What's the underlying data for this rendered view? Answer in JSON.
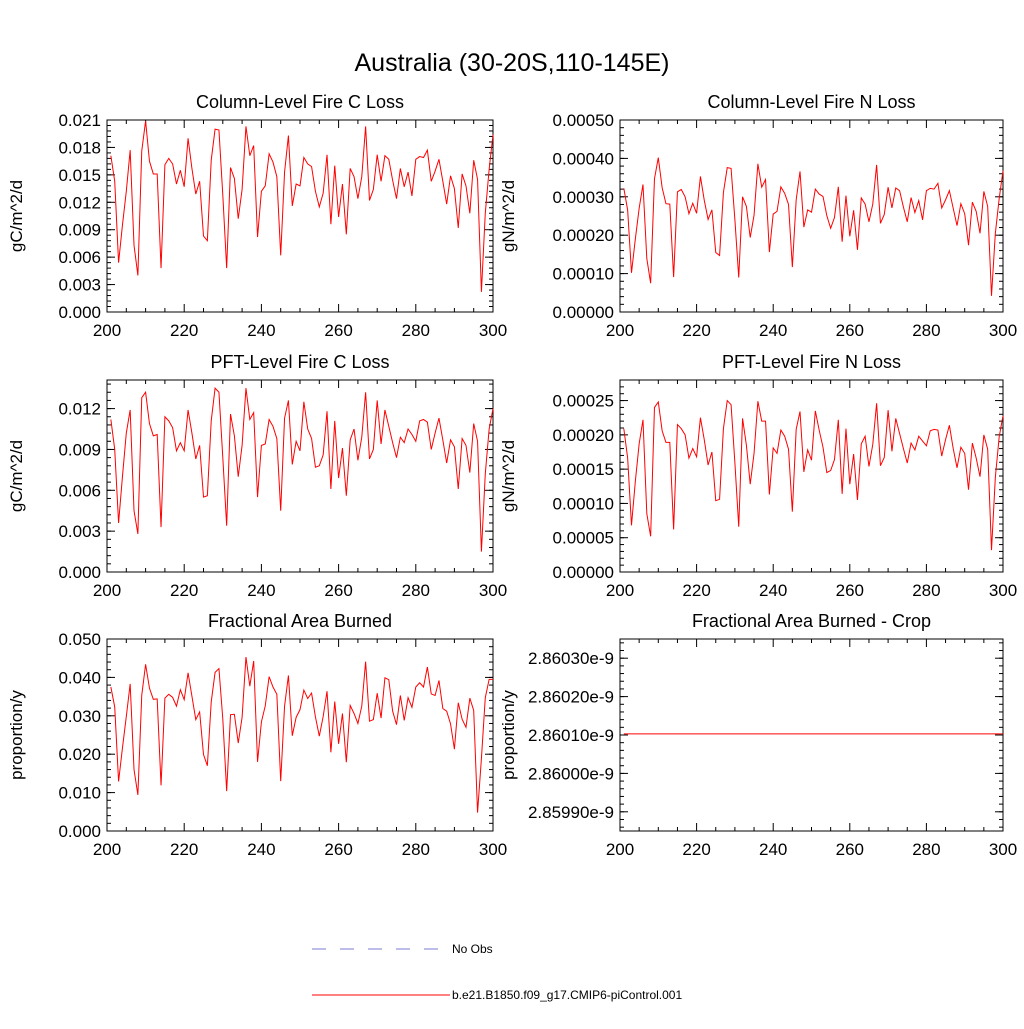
{
  "title": "Australia (30-20S,110-145E)",
  "colors": {
    "series": "#ff0000",
    "obs": "#7b7bd6"
  },
  "legend": [
    {
      "label": "No Obs",
      "style": "dashed",
      "color": "#7b7bd6"
    },
    {
      "label": "b.e21.B1850.f09_g17.CMIP6-piControl.001",
      "style": "solid",
      "color": "#ff0000"
    }
  ],
  "chart_data": [
    {
      "type": "line",
      "title": "Column-Level Fire C Loss",
      "ylabel": "gC/m^2/d",
      "xlim": [
        200,
        300
      ],
      "ylim": [
        0.0,
        0.021
      ],
      "xticks": [
        200,
        220,
        240,
        260,
        280,
        300
      ],
      "xtick_labels": [
        "200",
        "220",
        "240",
        "260",
        "280",
        "300"
      ],
      "yticks": [
        0.0,
        0.003,
        0.006,
        0.009,
        0.012,
        0.015,
        0.018,
        0.021
      ],
      "ytick_labels": [
        "0.000",
        "0.003",
        "0.006",
        "0.009",
        "0.012",
        "0.015",
        "0.018",
        "0.021"
      ],
      "x_start": 201,
      "values": [
        0.0171,
        0.0143,
        0.0054,
        0.0095,
        0.0132,
        0.0177,
        0.0073,
        0.004,
        0.0176,
        0.0209,
        0.0165,
        0.0151,
        0.0151,
        0.0048,
        0.0161,
        0.0168,
        0.0162,
        0.014,
        0.0155,
        0.0137,
        0.019,
        0.0157,
        0.0129,
        0.0143,
        0.0083,
        0.0078,
        0.0166,
        0.02,
        0.0199,
        0.0128,
        0.0048,
        0.0158,
        0.0146,
        0.0102,
        0.0134,
        0.0203,
        0.0171,
        0.0182,
        0.0082,
        0.0132,
        0.0138,
        0.0173,
        0.0164,
        0.0148,
        0.0062,
        0.0153,
        0.0193,
        0.0116,
        0.014,
        0.0138,
        0.0169,
        0.0162,
        0.0159,
        0.0132,
        0.0115,
        0.013,
        0.0172,
        0.0096,
        0.016,
        0.0104,
        0.014,
        0.0085,
        0.0157,
        0.0148,
        0.0124,
        0.0148,
        0.0203,
        0.0122,
        0.0134,
        0.0172,
        0.0143,
        0.0171,
        0.0167,
        0.0144,
        0.0124,
        0.0157,
        0.0137,
        0.0153,
        0.0127,
        0.0167,
        0.017,
        0.0169,
        0.0177,
        0.0143,
        0.0154,
        0.0167,
        0.0143,
        0.0118,
        0.0149,
        0.0135,
        0.0092,
        0.0151,
        0.0138,
        0.0108,
        0.0166,
        0.0145,
        0.0022,
        0.0108,
        0.0156,
        0.0194
      ]
    },
    {
      "type": "line",
      "title": "Column-Level Fire N Loss",
      "ylabel": "gN/m^2/d",
      "xlim": [
        200,
        300
      ],
      "ylim": [
        0.0,
        0.0005
      ],
      "xticks": [
        200,
        220,
        240,
        260,
        280,
        300
      ],
      "xtick_labels": [
        "200",
        "220",
        "240",
        "260",
        "280",
        "300"
      ],
      "yticks": [
        0.0,
        0.0001,
        0.0002,
        0.0003,
        0.0004,
        0.0005
      ],
      "ytick_labels": [
        "0.00000",
        "0.00010",
        "0.00020",
        "0.00030",
        "0.00040",
        "0.00050"
      ],
      "x_start": 201,
      "values": [
        0.000322,
        0.000265,
        0.000102,
        0.00019,
        0.00027,
        0.000332,
        0.000139,
        7.5e-05,
        0.000347,
        0.000402,
        0.000324,
        0.000282,
        0.000281,
        9.1e-05,
        0.000313,
        0.000319,
        0.0003,
        0.000256,
        0.000283,
        0.000257,
        0.000353,
        0.000291,
        0.000241,
        0.000266,
        0.000155,
        0.000147,
        0.000311,
        0.000376,
        0.000374,
        0.00024,
        9e-05,
        0.0003,
        0.000275,
        0.000194,
        0.000252,
        0.000386,
        0.000325,
        0.000345,
        0.000156,
        0.000255,
        0.000262,
        0.000326,
        0.000309,
        0.00028,
        0.000117,
        0.000292,
        0.000366,
        0.000221,
        0.000266,
        0.00026,
        0.00032,
        0.000307,
        0.000301,
        0.000251,
        0.000218,
        0.000246,
        0.000326,
        0.000183,
        0.000303,
        0.000197,
        0.000265,
        0.000162,
        0.000297,
        0.000281,
        0.000235,
        0.000281,
        0.000383,
        0.000231,
        0.000254,
        0.000325,
        0.000271,
        0.000323,
        0.000316,
        0.000273,
        0.000235,
        0.000298,
        0.000259,
        0.00029,
        0.00024,
        0.000316,
        0.000322,
        0.00032,
        0.000335,
        0.000271,
        0.000292,
        0.000316,
        0.00027,
        0.000225,
        0.000282,
        0.000256,
        0.000174,
        0.000286,
        0.000262,
        0.000205,
        0.000314,
        0.000275,
        4.2e-05,
        0.000205,
        0.000295,
        0.000368
      ]
    },
    {
      "type": "line",
      "title": "PFT-Level Fire C Loss",
      "ylabel": "gC/m^2/d",
      "xlim": [
        200,
        300
      ],
      "ylim": [
        0.0,
        0.0141
      ],
      "xticks": [
        200,
        220,
        240,
        260,
        280,
        300
      ],
      "xtick_labels": [
        "200",
        "220",
        "240",
        "260",
        "280",
        "300"
      ],
      "yticks": [
        0.0,
        0.003,
        0.006,
        0.009,
        0.012
      ],
      "ytick_labels": [
        "0.000",
        "0.003",
        "0.006",
        "0.009",
        "0.012"
      ],
      "x_start": 201,
      "values": [
        0.0112,
        0.009,
        0.0036,
        0.007,
        0.0102,
        0.0119,
        0.0045,
        0.0028,
        0.0128,
        0.0132,
        0.0109,
        0.01,
        0.0101,
        0.0033,
        0.0114,
        0.0111,
        0.0106,
        0.0089,
        0.0095,
        0.0089,
        0.0119,
        0.0102,
        0.0083,
        0.0093,
        0.0055,
        0.0056,
        0.0111,
        0.0135,
        0.0132,
        0.0084,
        0.0034,
        0.0116,
        0.01,
        0.007,
        0.0093,
        0.0135,
        0.0112,
        0.0117,
        0.0055,
        0.0093,
        0.0094,
        0.0112,
        0.0107,
        0.0098,
        0.0045,
        0.0113,
        0.0126,
        0.0079,
        0.0096,
        0.0089,
        0.0125,
        0.0105,
        0.0098,
        0.0077,
        0.0078,
        0.0086,
        0.0118,
        0.0061,
        0.0111,
        0.0069,
        0.0091,
        0.0056,
        0.0097,
        0.0105,
        0.0082,
        0.0099,
        0.0132,
        0.0083,
        0.009,
        0.0126,
        0.0094,
        0.0119,
        0.0107,
        0.0095,
        0.0084,
        0.0099,
        0.0095,
        0.0105,
        0.0101,
        0.0096,
        0.0111,
        0.0112,
        0.011,
        0.009,
        0.0102,
        0.0113,
        0.0097,
        0.008,
        0.0097,
        0.0092,
        0.0061,
        0.0098,
        0.0093,
        0.0073,
        0.0109,
        0.0096,
        0.0015,
        0.0072,
        0.0105,
        0.012
      ]
    },
    {
      "type": "line",
      "title": "PFT-Level Fire N Loss",
      "ylabel": "gN/m^2/d",
      "xlim": [
        200,
        300
      ],
      "ylim": [
        0.0,
        0.00028
      ],
      "xticks": [
        200,
        220,
        240,
        260,
        280,
        300
      ],
      "xtick_labels": [
        "200",
        "220",
        "240",
        "260",
        "280",
        "300"
      ],
      "yticks": [
        0.0,
        5e-05,
        0.0001,
        0.00015,
        0.0002,
        0.00025
      ],
      "ytick_labels": [
        "0.00000",
        "0.00005",
        "0.00010",
        "0.00015",
        "0.00020",
        "0.00025"
      ],
      "x_start": 201,
      "values": [
        0.000209,
        0.000166,
        6.8e-05,
        0.000132,
        0.000187,
        0.000222,
        8.5e-05,
        5.2e-05,
        0.00024,
        0.000248,
        0.000206,
        0.000189,
        0.000189,
        6.2e-05,
        0.000215,
        0.000209,
        0.0002,
        0.000166,
        0.00018,
        0.000168,
        0.000225,
        0.000193,
        0.000156,
        0.000175,
        0.000104,
        0.000106,
        0.000209,
        0.00025,
        0.000244,
        0.000159,
        6.6e-05,
        0.000224,
        0.000185,
        0.000128,
        0.000173,
        0.000249,
        0.00022,
        0.00022,
        0.000113,
        0.000181,
        0.000173,
        0.000207,
        0.000198,
        0.000179,
        8.8e-05,
        0.000208,
        0.000234,
        0.000146,
        0.000178,
        0.000163,
        0.000235,
        0.000207,
        0.000182,
        0.000145,
        0.000148,
        0.000164,
        0.000222,
        0.000114,
        0.000209,
        0.000128,
        0.000172,
        0.000105,
        0.000187,
        0.000198,
        0.000154,
        0.000186,
        0.000246,
        0.000155,
        0.000167,
        0.000236,
        0.000176,
        0.000224,
        0.000202,
        0.00018,
        0.000159,
        0.000188,
        0.000178,
        0.000198,
        0.000191,
        0.000184,
        0.000206,
        0.000208,
        0.000207,
        0.000169,
        0.000193,
        0.000214,
        0.00018,
        0.000152,
        0.000182,
        0.000173,
        0.00012,
        0.000188,
        0.000166,
        0.000139,
        0.0002,
        0.000179,
        3.2e-05,
        0.000138,
        0.000197,
        0.000228
      ]
    },
    {
      "type": "line",
      "title": "Fractional Area Burned",
      "ylabel": "proportion/y",
      "xlim": [
        200,
        300
      ],
      "ylim": [
        0.0,
        0.05
      ],
      "xticks": [
        200,
        220,
        240,
        260,
        280,
        300
      ],
      "xtick_labels": [
        "200",
        "220",
        "240",
        "260",
        "280",
        "300"
      ],
      "yticks": [
        0.0,
        0.01,
        0.02,
        0.03,
        0.04,
        0.05
      ],
      "ytick_labels": [
        "0.000",
        "0.010",
        "0.020",
        "0.030",
        "0.040",
        "0.050"
      ],
      "x_start": 201,
      "values": [
        0.0375,
        0.0323,
        0.0129,
        0.0216,
        0.0298,
        0.0383,
        0.016,
        0.0094,
        0.0353,
        0.0434,
        0.0372,
        0.0343,
        0.0344,
        0.0119,
        0.0346,
        0.0356,
        0.0348,
        0.0325,
        0.0368,
        0.0342,
        0.0412,
        0.0351,
        0.029,
        0.031,
        0.0199,
        0.017,
        0.0336,
        0.0413,
        0.0423,
        0.0292,
        0.0104,
        0.0303,
        0.0304,
        0.0229,
        0.0296,
        0.0453,
        0.0377,
        0.0443,
        0.018,
        0.0284,
        0.0326,
        0.0402,
        0.0375,
        0.0356,
        0.013,
        0.0325,
        0.0405,
        0.0248,
        0.0296,
        0.0316,
        0.0367,
        0.0345,
        0.0359,
        0.0297,
        0.0247,
        0.0298,
        0.0364,
        0.0205,
        0.0337,
        0.0227,
        0.0306,
        0.0179,
        0.0327,
        0.0306,
        0.028,
        0.0325,
        0.0441,
        0.0286,
        0.029,
        0.0359,
        0.0294,
        0.0399,
        0.0394,
        0.0312,
        0.0277,
        0.0353,
        0.0288,
        0.0347,
        0.0322,
        0.0375,
        0.0386,
        0.0375,
        0.0427,
        0.0357,
        0.0353,
        0.0392,
        0.0319,
        0.0312,
        0.0279,
        0.0213,
        0.0334,
        0.0291,
        0.027,
        0.0346,
        0.0314,
        0.0048,
        0.0189,
        0.0347,
        0.0395,
        0.0395
      ]
    },
    {
      "type": "line",
      "title": "Fractional Area Burned - Crop",
      "ylabel": "proportion/y",
      "xlim": [
        200,
        300
      ],
      "ylim": [
        2.85985e-09,
        2.86035e-09
      ],
      "xticks": [
        200,
        220,
        240,
        260,
        280,
        300
      ],
      "xtick_labels": [
        "200",
        "220",
        "240",
        "260",
        "280",
        "300"
      ],
      "yticks": [
        2.8599e-09,
        2.86e-09,
        2.8601e-09,
        2.8602e-09,
        2.8603e-09
      ],
      "ytick_labels": [
        "2.85990e-9",
        "2.86000e-9",
        "2.86010e-9",
        "2.86020e-9",
        "2.86030e-9"
      ],
      "x_start": 201,
      "constant_value": 2.860103e-09,
      "x_end": 300
    }
  ]
}
